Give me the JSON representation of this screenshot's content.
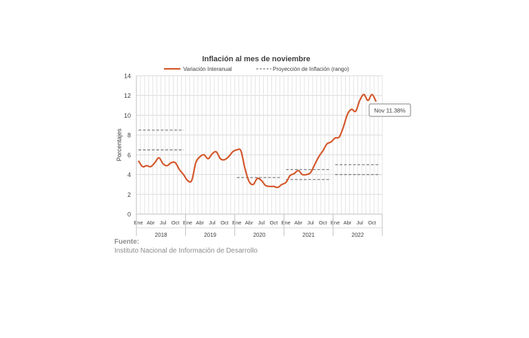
{
  "chart_data": {
    "type": "line",
    "title": "Inflación al mes de noviembre",
    "xlabel": "",
    "ylabel": "Porcentajes",
    "ylim": [
      0,
      14
    ],
    "yticks": [
      0,
      2,
      4,
      6,
      8,
      10,
      12,
      14
    ],
    "grid": true,
    "legend_position": "top",
    "month_ticks": [
      "Ene",
      "Abr",
      "Jul",
      "Oct"
    ],
    "years": [
      "2018",
      "2019",
      "2020",
      "2021",
      "2022"
    ],
    "series": [
      {
        "name": "Variación Interanual",
        "color": "#d4572a",
        "style": "solid",
        "values": [
          5.4,
          4.8,
          4.9,
          4.8,
          5.2,
          5.7,
          5.1,
          4.9,
          5.2,
          5.2,
          4.5,
          4.0,
          3.4,
          3.4,
          5.2,
          5.8,
          6.0,
          5.6,
          6.1,
          6.3,
          5.6,
          5.5,
          5.8,
          6.3,
          6.5,
          6.4,
          4.6,
          3.3,
          3.0,
          3.6,
          3.4,
          2.9,
          2.8,
          2.8,
          2.7,
          3.0,
          3.2,
          3.9,
          4.1,
          4.4,
          4.0,
          4.0,
          4.2,
          5.0,
          5.8,
          6.4,
          7.1,
          7.3,
          7.7,
          7.8,
          8.8,
          10.1,
          10.6,
          10.4,
          11.5,
          12.1,
          11.5,
          12.1,
          11.38
        ]
      },
      {
        "name": "Proyección de Inflación (rango)",
        "color": "#7f7f7f",
        "style": "dashed",
        "segments": [
          {
            "year": "2018",
            "low": 6.5,
            "high": 8.5
          },
          {
            "year": "2020",
            "low": 3.7,
            "high": 3.7
          },
          {
            "year": "2021",
            "low": 3.5,
            "high": 4.5
          },
          {
            "year": "2022",
            "low": 4.0,
            "high": 5.0
          }
        ]
      }
    ],
    "annotation": {
      "text": "Nov 11.38%"
    }
  },
  "footer": {
    "title": "Fuente:",
    "text": "Instituto Nacional de Información de  Desarrollo"
  }
}
